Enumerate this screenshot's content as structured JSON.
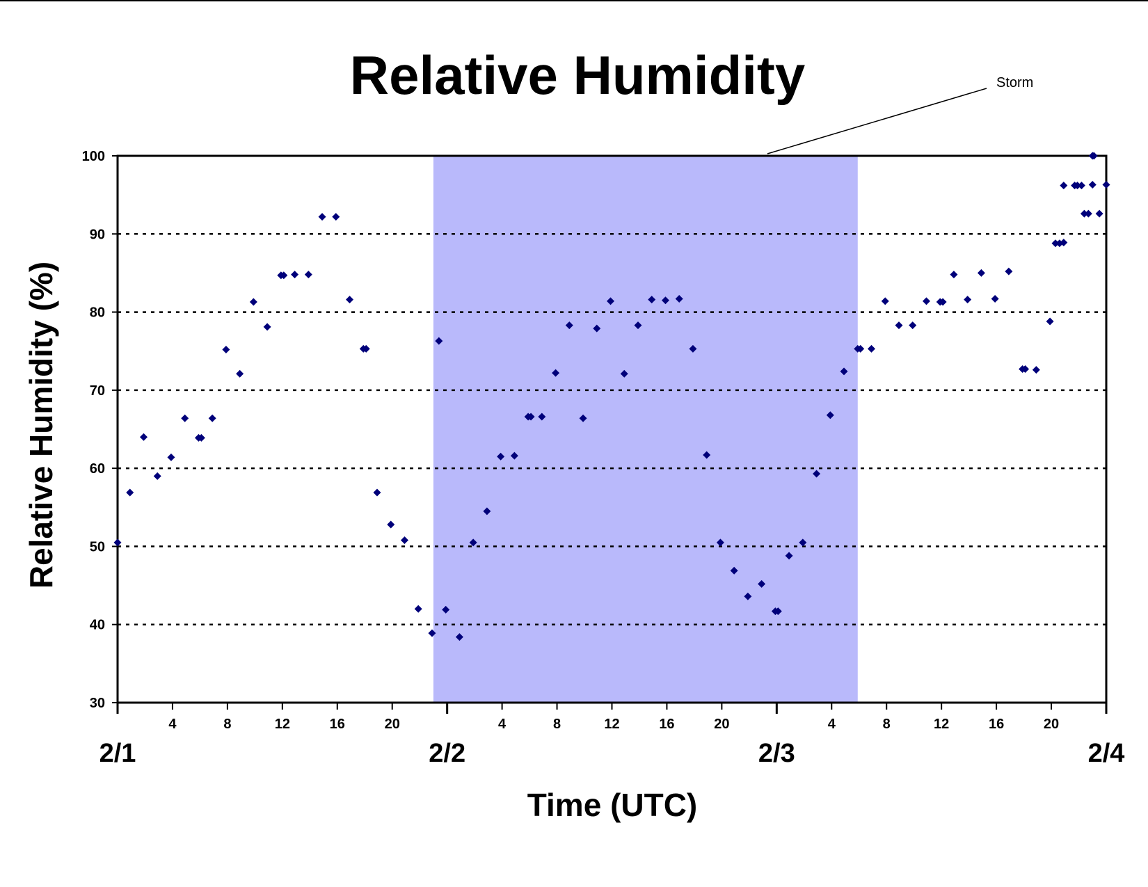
{
  "chart_data": {
    "type": "scatter",
    "title": "Relative Humidity",
    "xlabel": "Time (UTC)",
    "ylabel": "Relative Humidity (%)",
    "ylim": [
      30,
      100
    ],
    "yticks": [
      30,
      40,
      50,
      60,
      70,
      80,
      90,
      100
    ],
    "xlim_hours": [
      0,
      72
    ],
    "hour_ticks": [
      4,
      8,
      12,
      16,
      20,
      28,
      32,
      36,
      40,
      44,
      52,
      56,
      60,
      64,
      68
    ],
    "hour_tick_labels": [
      "4",
      "8",
      "12",
      "16",
      "20",
      "4",
      "8",
      "12",
      "16",
      "20",
      "4",
      "8",
      "12",
      "16",
      "20"
    ],
    "date_ticks": [
      0,
      24,
      48,
      72
    ],
    "date_labels": [
      "2/1",
      "2/2",
      "2/3",
      "2/4"
    ],
    "grid": "horizontal dotted",
    "marker_color": "#00007a",
    "highlight": {
      "label": "Storm",
      "x_start_hours": 23,
      "x_end_hours": 53.9,
      "color": "#b9b9fb"
    },
    "series": [
      {
        "points": [
          [
            0,
            50.5
          ],
          [
            0.9,
            56.9
          ],
          [
            1.9,
            64.0
          ],
          [
            2.9,
            59.0
          ],
          [
            3.9,
            61.4
          ],
          [
            4.9,
            66.4
          ],
          [
            5.9,
            63.9
          ],
          [
            6.1,
            63.9
          ],
          [
            6.9,
            66.4
          ],
          [
            7.9,
            75.2
          ],
          [
            8.9,
            72.1
          ],
          [
            9.9,
            81.3
          ],
          [
            10.9,
            78.1
          ],
          [
            11.9,
            84.7
          ],
          [
            12.1,
            84.7
          ],
          [
            12.9,
            84.8
          ],
          [
            13.9,
            84.8
          ],
          [
            14.9,
            92.2
          ],
          [
            15.9,
            92.2
          ],
          [
            16.9,
            81.6
          ],
          [
            17.9,
            75.3
          ],
          [
            18.1,
            75.3
          ],
          [
            18.9,
            56.9
          ],
          [
            19.9,
            52.8
          ],
          [
            20.9,
            50.8
          ],
          [
            21.9,
            42.0
          ],
          [
            22.9,
            38.9
          ],
          [
            23.4,
            76.3
          ],
          [
            23.9,
            41.9
          ],
          [
            24.9,
            38.4
          ],
          [
            25.9,
            50.5
          ],
          [
            26.9,
            54.5
          ],
          [
            27.9,
            61.5
          ],
          [
            28.9,
            61.6
          ],
          [
            29.9,
            66.6
          ],
          [
            30.1,
            66.6
          ],
          [
            30.9,
            66.6
          ],
          [
            31.9,
            72.2
          ],
          [
            32.9,
            78.3
          ],
          [
            33.9,
            66.4
          ],
          [
            34.9,
            77.9
          ],
          [
            35.9,
            81.4
          ],
          [
            36.9,
            72.1
          ],
          [
            37.9,
            78.3
          ],
          [
            38.9,
            81.6
          ],
          [
            39.9,
            81.5
          ],
          [
            40.9,
            81.7
          ],
          [
            41.9,
            75.3
          ],
          [
            42.9,
            61.7
          ],
          [
            43.9,
            50.5
          ],
          [
            44.9,
            46.9
          ],
          [
            45.9,
            43.6
          ],
          [
            46.9,
            45.2
          ],
          [
            47.9,
            41.7
          ],
          [
            48.1,
            41.7
          ],
          [
            48.9,
            48.8
          ],
          [
            49.9,
            50.5
          ],
          [
            50.9,
            59.3
          ],
          [
            51.9,
            66.8
          ],
          [
            52.9,
            72.4
          ],
          [
            53.9,
            75.3
          ],
          [
            54.1,
            75.3
          ],
          [
            54.9,
            75.3
          ],
          [
            55.9,
            81.4
          ],
          [
            56.9,
            78.3
          ],
          [
            57.9,
            78.3
          ],
          [
            58.9,
            81.4
          ],
          [
            59.9,
            81.3
          ],
          [
            60.1,
            81.3
          ],
          [
            60.9,
            84.8
          ],
          [
            61.9,
            81.6
          ],
          [
            62.9,
            85.0
          ],
          [
            63.9,
            81.7
          ],
          [
            64.9,
            85.2
          ],
          [
            65.9,
            72.7
          ],
          [
            66.1,
            72.7
          ],
          [
            66.9,
            72.6
          ],
          [
            67.9,
            78.8
          ],
          [
            68.3,
            88.8
          ],
          [
            68.6,
            88.8
          ],
          [
            68.9,
            88.9
          ],
          [
            68.9,
            96.2
          ],
          [
            69.7,
            96.2
          ],
          [
            69.9,
            96.2
          ],
          [
            70.2,
            96.2
          ],
          [
            70.4,
            92.6
          ],
          [
            70.7,
            92.6
          ],
          [
            71.0,
            96.3
          ],
          [
            71.0,
            100.0
          ],
          [
            71.1,
            100.0
          ],
          [
            71.5,
            92.6
          ],
          [
            72.0,
            96.3
          ]
        ]
      }
    ]
  }
}
